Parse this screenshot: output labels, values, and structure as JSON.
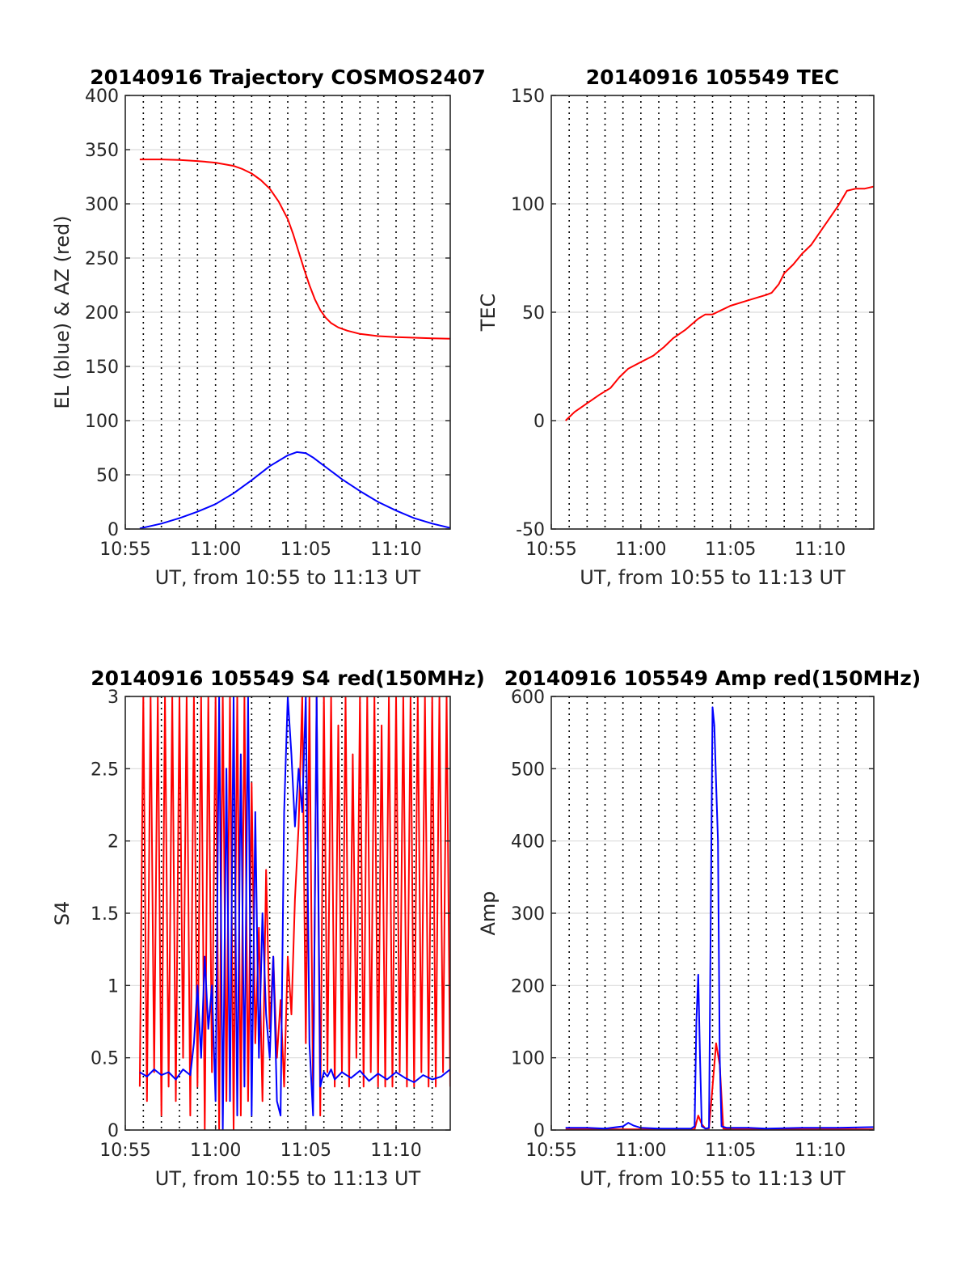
{
  "chart_data": [
    {
      "id": "trajectory",
      "type": "line",
      "title": "20140916 Trajectory COSMOS2407",
      "xlabel": "UT, from 10:55 to 11:13 UT",
      "ylabel": "EL (blue) & AZ (red)",
      "xlim": [
        0,
        18
      ],
      "ylim": [
        0,
        400
      ],
      "x_ticks": [
        {
          "value": 0,
          "label": "10:55"
        },
        {
          "value": 5,
          "label": "11:00"
        },
        {
          "value": 10,
          "label": "11:05"
        },
        {
          "value": 15,
          "label": "11:10"
        }
      ],
      "y_ticks": [
        0,
        50,
        100,
        150,
        200,
        250,
        300,
        350,
        400
      ],
      "series": [
        {
          "color": "#ff0000",
          "x": [
            0.8,
            2,
            3,
            4,
            5,
            6,
            6.5,
            7,
            7.5,
            8,
            8.5,
            9,
            9.3,
            9.6,
            9.9,
            10.2,
            10.5,
            10.8,
            11.1,
            11.4,
            11.8,
            12.3,
            13,
            14,
            15,
            16,
            17,
            18
          ],
          "y": [
            341,
            341,
            340.5,
            339.5,
            338,
            335,
            332,
            328,
            322,
            314,
            302,
            286,
            272,
            256,
            240,
            225,
            212,
            202,
            195,
            190,
            186,
            183,
            180,
            178,
            177,
            176.5,
            176,
            175.5
          ]
        },
        {
          "color": "#0000ff",
          "x": [
            0.8,
            2,
            3,
            4,
            5,
            6,
            7,
            8,
            9,
            9.5,
            10,
            10.4,
            10.8,
            11.2,
            11.6,
            12,
            13,
            14,
            15,
            16,
            17,
            18
          ],
          "y": [
            0.5,
            5,
            10,
            16,
            23,
            33,
            45,
            58,
            68,
            71,
            70,
            66,
            61,
            56,
            51,
            46,
            35,
            25,
            17,
            10,
            5,
            1
          ]
        }
      ]
    },
    {
      "id": "tec",
      "type": "line",
      "title": "20140916 105549 TEC",
      "xlabel": "UT, from 10:55 to 11:13 UT",
      "ylabel": "TEC",
      "xlim": [
        0,
        18
      ],
      "ylim": [
        -50,
        150
      ],
      "x_ticks": [
        {
          "value": 0,
          "label": "10:55"
        },
        {
          "value": 5,
          "label": "11:00"
        },
        {
          "value": 10,
          "label": "11:05"
        },
        {
          "value": 15,
          "label": "11:10"
        }
      ],
      "y_ticks": [
        -50,
        0,
        50,
        100,
        150
      ],
      "series": [
        {
          "color": "#ff0000",
          "x": [
            0.8,
            1.3,
            2,
            2.7,
            3.3,
            3.8,
            4.3,
            5,
            5.7,
            6.3,
            6.8,
            7.5,
            8.2,
            8.6,
            9,
            9.5,
            10,
            10.8,
            11.6,
            12,
            12.3,
            12.7,
            13,
            13.5,
            14,
            14.5,
            15,
            15.5,
            16,
            16.5,
            17,
            17.5,
            18
          ],
          "y": [
            0,
            4,
            8,
            12,
            15,
            20,
            24,
            27,
            30,
            34,
            38,
            42,
            47,
            49,
            49,
            51,
            53,
            55,
            57,
            58,
            59,
            63,
            68,
            72,
            77,
            81,
            87,
            93,
            99,
            106,
            107,
            107,
            108
          ]
        }
      ]
    },
    {
      "id": "s4",
      "type": "line",
      "title": "20140916 105549 S4 red(150MHz)",
      "xlabel": "UT, from 10:55 to 11:13 UT",
      "ylabel": "S4",
      "xlim": [
        0,
        18
      ],
      "ylim": [
        0,
        3
      ],
      "x_ticks": [
        {
          "value": 0,
          "label": "10:55"
        },
        {
          "value": 5,
          "label": "11:00"
        },
        {
          "value": 10,
          "label": "11:05"
        },
        {
          "value": 15,
          "label": "11:10"
        }
      ],
      "y_ticks": [
        0,
        0.5,
        1,
        1.5,
        2,
        2.5,
        3
      ],
      "series": [
        {
          "color": "#ff0000",
          "x": [
            0.8,
            1,
            1.2,
            1.4,
            1.6,
            1.8,
            2,
            2.2,
            2.4,
            2.6,
            2.8,
            3,
            3.2,
            3.4,
            3.6,
            3.8,
            4,
            4.2,
            4.4,
            4.6,
            4.8,
            5,
            5.2,
            5.4,
            5.6,
            5.8,
            6,
            6.2,
            6.4,
            6.6,
            6.8,
            7,
            7.2,
            7.4,
            7.6,
            7.8,
            8,
            8.2,
            8.4,
            8.6,
            8.8,
            9,
            9.2,
            9.4,
            9.6,
            9.8,
            10,
            10.2,
            10.4,
            10.6,
            10.8,
            11,
            11.2,
            11.4,
            11.6,
            11.8,
            12,
            12.2,
            12.4,
            12.6,
            12.8,
            13,
            13.2,
            13.4,
            13.6,
            13.8,
            14,
            14.2,
            14.4,
            14.6,
            14.8,
            15,
            15.2,
            15.4,
            15.6,
            15.8,
            16,
            16.2,
            16.4,
            16.6,
            16.8,
            17,
            17.2,
            17.4,
            17.6,
            17.8,
            18
          ],
          "y": [
            0.3,
            3,
            0.2,
            3,
            0.4,
            3,
            0.1,
            3,
            0.3,
            3,
            0.2,
            3,
            0.5,
            3,
            0.1,
            3,
            0.3,
            3,
            0,
            3,
            0.4,
            3,
            0,
            3,
            0.2,
            3,
            0,
            3,
            0.1,
            3,
            0.2,
            2.4,
            0.6,
            1.4,
            0.2,
            1.8,
            0.7,
            1.2,
            0.5,
            0.9,
            0.3,
            1.2,
            0.8,
            1.6,
            2.1,
            3,
            0.6,
            3,
            0.2,
            3,
            0.1,
            3,
            0.4,
            3,
            0.3,
            2.8,
            0.4,
            3,
            0.3,
            2.6,
            0.5,
            3,
            0.3,
            3,
            0.4,
            3,
            0.3,
            2.8,
            0.3,
            3,
            0.3,
            3,
            0.4,
            3,
            0.3,
            3,
            0.3,
            3,
            0.4,
            3,
            0.3,
            3,
            0.3,
            3,
            0.4,
            3,
            0.3
          ]
        },
        {
          "color": "#0000ff",
          "x": [
            0.8,
            1.2,
            1.6,
            2,
            2.4,
            2.8,
            3.2,
            3.6,
            3.8,
            4,
            4.2,
            4.4,
            4.6,
            4.8,
            5,
            5.2,
            5.4,
            5.6,
            5.8,
            6,
            6.2,
            6.4,
            6.6,
            6.8,
            7,
            7.2,
            7.4,
            7.6,
            7.8,
            8,
            8.2,
            8.4,
            8.6,
            8.8,
            9,
            9.2,
            9.4,
            9.6,
            9.8,
            10,
            10.2,
            10.4,
            10.6,
            10.8,
            11,
            11.2,
            11.4,
            11.6,
            12,
            12.5,
            13,
            13.5,
            14,
            14.5,
            15,
            15.5,
            16,
            16.5,
            17,
            17.5,
            18
          ],
          "y": [
            0.4,
            0.37,
            0.42,
            0.38,
            0.4,
            0.35,
            0.42,
            0.38,
            0.6,
            1.0,
            0.5,
            1.2,
            0.7,
            1.0,
            0.2,
            3,
            0,
            2.5,
            0.2,
            3,
            0.1,
            2.6,
            0.3,
            3,
            0.1,
            2.2,
            0.5,
            1.5,
            0.8,
            0.5,
            1.2,
            0.2,
            0.1,
            2.2,
            3,
            2.6,
            2.1,
            2.5,
            2.2,
            3,
            0.6,
            0.1,
            3,
            0.3,
            0.4,
            0.37,
            0.42,
            0.35,
            0.4,
            0.36,
            0.41,
            0.34,
            0.39,
            0.35,
            0.4,
            0.36,
            0.33,
            0.38,
            0.35,
            0.37,
            0.42
          ]
        }
      ]
    },
    {
      "id": "amp",
      "type": "line",
      "title": "20140916 105549 Amp red(150MHz)",
      "xlabel": "UT, from 10:55 to 11:13 UT",
      "ylabel": "Amp",
      "xlim": [
        0,
        18
      ],
      "ylim": [
        0,
        600
      ],
      "x_ticks": [
        {
          "value": 0,
          "label": "10:55"
        },
        {
          "value": 5,
          "label": "11:00"
        },
        {
          "value": 10,
          "label": "11:05"
        },
        {
          "value": 15,
          "label": "11:10"
        }
      ],
      "y_ticks": [
        0,
        100,
        200,
        300,
        400,
        500,
        600
      ],
      "series": [
        {
          "color": "#ff0000",
          "x": [
            0.8,
            2,
            4,
            6,
            8,
            8.2,
            8.4,
            8.6,
            8.8,
            9,
            9.2,
            9.4,
            9.6,
            10,
            12,
            14,
            16,
            18
          ],
          "y": [
            1,
            1,
            1,
            1,
            1,
            20,
            8,
            2,
            2,
            60,
            120,
            90,
            2,
            1,
            1,
            1,
            1,
            1
          ]
        },
        {
          "color": "#0000ff",
          "x": [
            0.8,
            2,
            3,
            4,
            4.3,
            4.6,
            5,
            6,
            7,
            7.8,
            8,
            8.1,
            8.2,
            8.3,
            8.4,
            8.6,
            8.8,
            8.9,
            9,
            9.1,
            9.2,
            9.3,
            9.4,
            9.5,
            9.8,
            11,
            12,
            14,
            16,
            18
          ],
          "y": [
            3,
            3,
            2,
            5,
            10,
            6,
            3,
            2,
            2,
            2,
            5,
            150,
            215,
            100,
            5,
            2,
            3,
            300,
            585,
            560,
            480,
            400,
            100,
            5,
            3,
            3,
            2,
            3,
            3,
            4
          ]
        }
      ]
    }
  ]
}
